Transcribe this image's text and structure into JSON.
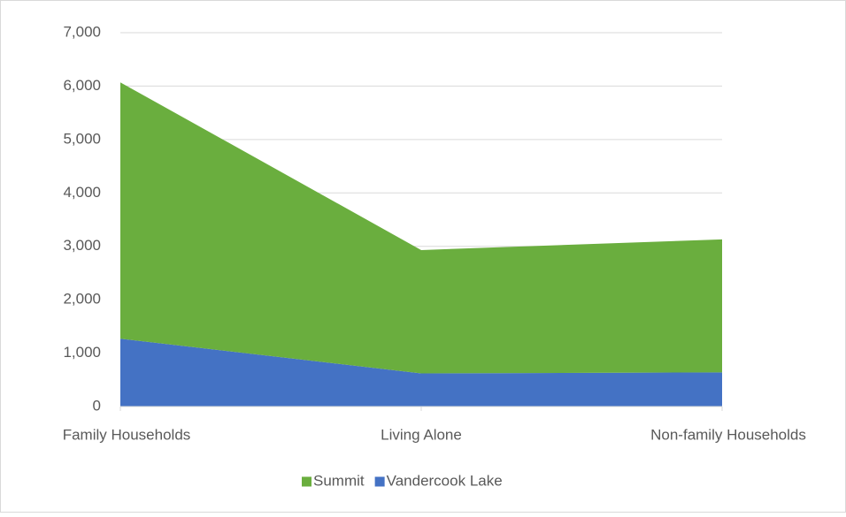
{
  "chart_data": {
    "type": "stacked_area",
    "categories": [
      "Family Households",
      "Living Alone",
      "Non-family Households"
    ],
    "series": [
      {
        "name": "Summit",
        "color": "#6aae3e",
        "values": [
          4800,
          2310,
          2490
        ]
      },
      {
        "name": "Vandercook Lake",
        "color": "#4472c4",
        "values": [
          1270,
          620,
          640
        ]
      }
    ],
    "ylim": [
      0,
      7000
    ],
    "yticks": [
      0,
      {
        "value": 1000,
        "label": "1,000"
      },
      {
        "value": 2000,
        "label": "2,000"
      },
      {
        "value": 3000,
        "label": "3,000"
      },
      {
        "value": 4000,
        "label": "4,000"
      },
      {
        "value": 5000,
        "label": "5,000"
      },
      {
        "value": 6000,
        "label": "6,000"
      },
      {
        "value": 7000,
        "label": "7,000"
      }
    ],
    "grid": true,
    "legend": "bottom"
  }
}
